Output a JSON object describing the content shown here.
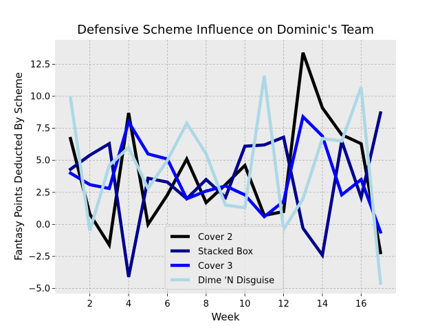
{
  "chart_data": {
    "type": "line",
    "title": "Defensive Scheme Influence on Dominic's Team",
    "xlabel": "Week",
    "ylabel": "Fantasy Points Deducted By Scheme",
    "xlim": [
      0.2,
      17.8
    ],
    "ylim": [
      -5.4,
      14.4
    ],
    "xticks": [
      2,
      4,
      6,
      8,
      10,
      12,
      14,
      16
    ],
    "yticks": [
      -5.0,
      -2.5,
      0.0,
      2.5,
      5.0,
      7.5,
      10.0,
      12.5
    ],
    "ytick_labels": [
      "−5.0",
      "−2.5",
      "0.0",
      "2.5",
      "5.0",
      "7.5",
      "10.0",
      "12.5"
    ],
    "grid": true,
    "legend_position": "lower center",
    "x": [
      1,
      2,
      3,
      4,
      5,
      6,
      7,
      8,
      9,
      10,
      11,
      12,
      13,
      14,
      15,
      16,
      17
    ],
    "series": [
      {
        "name": "Cover 2",
        "color": "#000000",
        "values": [
          6.7,
          0.8,
          -1.6,
          8.7,
          0.0,
          2.3,
          5.1,
          1.7,
          3.1,
          4.6,
          0.7,
          1.0,
          13.4,
          9.1,
          7.0,
          6.3,
          -2.2
        ]
      },
      {
        "name": "Stacked Box",
        "color": "#00008b",
        "values": [
          4.3,
          5.4,
          6.3,
          -4.1,
          3.6,
          3.3,
          2.0,
          3.5,
          2.1,
          6.1,
          6.2,
          6.8,
          -0.3,
          -2.4,
          6.5,
          2.1,
          8.7
        ]
      },
      {
        "name": "Cover 3",
        "color": "#0000ff",
        "values": [
          4.0,
          3.1,
          2.8,
          8.0,
          5.5,
          5.1,
          2.0,
          2.6,
          3.0,
          2.3,
          0.6,
          1.8,
          8.4,
          6.9,
          2.3,
          3.5,
          -0.6
        ]
      },
      {
        "name": "Dime 'N Disguise",
        "color": "#add8e6",
        "values": [
          9.9,
          -0.5,
          4.6,
          6.0,
          2.8,
          5.0,
          7.9,
          5.5,
          1.5,
          1.3,
          11.6,
          -0.4,
          2.0,
          6.7,
          6.5,
          10.7,
          -4.6
        ]
      }
    ]
  }
}
